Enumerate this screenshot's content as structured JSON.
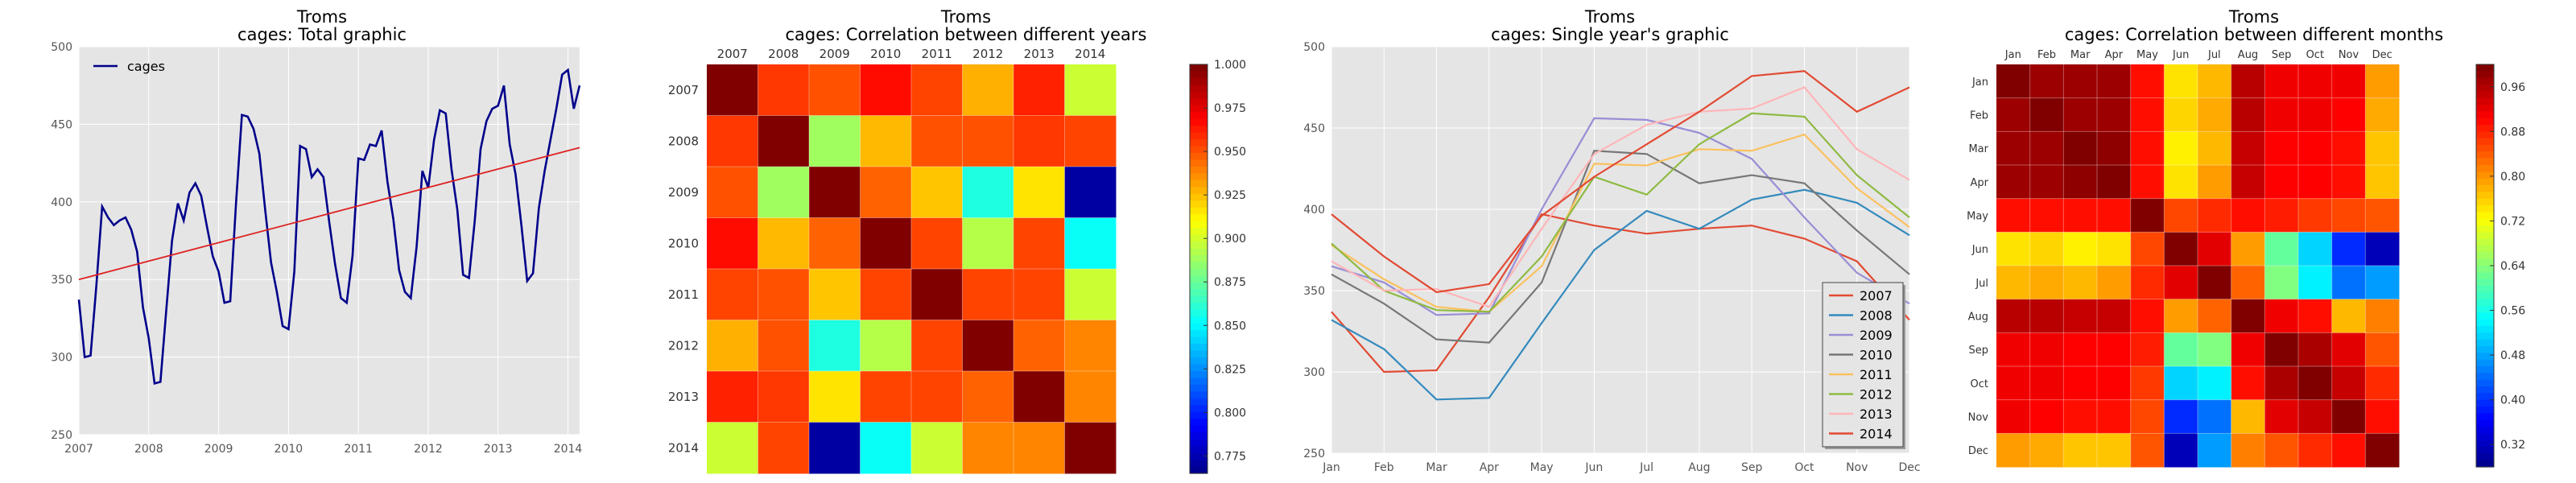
{
  "figure": {
    "region": "Troms"
  },
  "chart_data": [
    {
      "type": "line",
      "title": "Troms",
      "subtitle": "cages: Total graphic",
      "xlabel": "",
      "ylabel": "",
      "ylim": [
        250,
        500
      ],
      "xlim": [
        "2007-01",
        "2014-12"
      ],
      "yticks": [
        "250",
        "300",
        "350",
        "400",
        "450",
        "500"
      ],
      "xticks": [
        "2007",
        "2008",
        "2009",
        "2010",
        "2011",
        "2012",
        "2013",
        "2014"
      ],
      "grid": true,
      "legend_position": "top-left",
      "series": [
        {
          "name": "cages",
          "color": "#00008b",
          "values": [
            337,
            300,
            301,
            346,
            397,
            390,
            385,
            388,
            390,
            382,
            368,
            332,
            312,
            283,
            284,
            330,
            375,
            399,
            388,
            406,
            412,
            404,
            384,
            365,
            355,
            335,
            336,
            400,
            456,
            455,
            447,
            431,
            395,
            361,
            342,
            320,
            318,
            355,
            436,
            434,
            416,
            421,
            416,
            387,
            360,
            338,
            335,
            365,
            428,
            427,
            437,
            436,
            446,
            413,
            389,
            356,
            342,
            338,
            371,
            420,
            409,
            440,
            459,
            457,
            421,
            395,
            353,
            351,
            388,
            434,
            452,
            460,
            462,
            475,
            437,
            418,
            385,
            349,
            354,
            396,
            420,
            440,
            460,
            482,
            485,
            460,
            475
          ]
        },
        {
          "name": "trend",
          "color": "#dd2222",
          "legend": false,
          "values": [
            350,
            435
          ]
        }
      ]
    },
    {
      "type": "heatmap",
      "title": "Troms",
      "subtitle": "cages: Correlation between different years",
      "labels": [
        "2007",
        "2008",
        "2009",
        "2010",
        "2011",
        "2012",
        "2013",
        "2014"
      ],
      "colorbar_ticks": [
        "1.000",
        "0.975",
        "0.950",
        "0.925",
        "0.900",
        "0.875",
        "0.850",
        "0.825",
        "0.800",
        "0.775"
      ],
      "vmin": 0.765,
      "vmax": 1.0,
      "values": [
        [
          1.0,
          0.958,
          0.952,
          0.968,
          0.955,
          0.93,
          0.963,
          0.9
        ],
        [
          0.958,
          1.0,
          0.89,
          0.928,
          0.952,
          0.952,
          0.958,
          0.955
        ],
        [
          0.952,
          0.89,
          1.0,
          0.948,
          0.925,
          0.86,
          0.918,
          0.773
        ],
        [
          0.968,
          0.928,
          0.948,
          1.0,
          0.955,
          0.895,
          0.955,
          0.855
        ],
        [
          0.955,
          0.952,
          0.925,
          0.955,
          1.0,
          0.955,
          0.955,
          0.9
        ],
        [
          0.93,
          0.952,
          0.86,
          0.895,
          0.955,
          1.0,
          0.948,
          0.94
        ],
        [
          0.963,
          0.958,
          0.918,
          0.955,
          0.955,
          0.948,
          1.0,
          0.94
        ],
        [
          0.9,
          0.955,
          0.773,
          0.855,
          0.9,
          0.94,
          0.94,
          1.0
        ]
      ]
    },
    {
      "type": "line",
      "title": "Troms",
      "subtitle": "cages: Single year's graphic",
      "ylim": [
        250,
        500
      ],
      "yticks": [
        "250",
        "300",
        "350",
        "400",
        "450",
        "500"
      ],
      "categories": [
        "Jan",
        "Feb",
        "Mar",
        "Apr",
        "May",
        "Jun",
        "Jul",
        "Aug",
        "Sep",
        "Oct",
        "Nov",
        "Dec"
      ],
      "grid": true,
      "legend_position": "lower-right",
      "series": [
        {
          "name": "2007",
          "color": "#e24a33",
          "values": [
            337,
            300,
            301,
            346,
            397,
            390,
            385,
            388,
            390,
            382,
            368,
            332
          ]
        },
        {
          "name": "2008",
          "color": "#348abd",
          "values": [
            332,
            314,
            283,
            284,
            330,
            375,
            399,
            388,
            406,
            412,
            404,
            384
          ]
        },
        {
          "name": "2009",
          "color": "#988ed5",
          "values": [
            365,
            355,
            335,
            336,
            400,
            456,
            455,
            447,
            431,
            395,
            361,
            342
          ]
        },
        {
          "name": "2010",
          "color": "#777777",
          "values": [
            360,
            342,
            320,
            318,
            355,
            436,
            434,
            416,
            421,
            416,
            387,
            360
          ]
        },
        {
          "name": "2011",
          "color": "#fbc15e",
          "values": [
            378,
            357,
            340,
            337,
            365,
            428,
            427,
            437,
            436,
            446,
            413,
            389
          ]
        },
        {
          "name": "2012",
          "color": "#8eba42",
          "values": [
            379,
            350,
            338,
            337,
            371,
            420,
            409,
            440,
            459,
            457,
            421,
            395
          ]
        },
        {
          "name": "2013",
          "color": "#ffb5b8",
          "values": [
            368,
            350,
            351,
            340,
            388,
            434,
            452,
            460,
            462,
            475,
            437,
            418
          ]
        },
        {
          "name": "2014",
          "color": "#e24a33",
          "values": [
            397,
            371,
            349,
            354,
            396,
            420,
            440,
            460,
            482,
            485,
            460,
            475
          ]
        }
      ]
    },
    {
      "type": "heatmap",
      "title": "Troms",
      "subtitle": "cages: Correlation between different months",
      "labels": [
        "Jan",
        "Feb",
        "Mar",
        "Apr",
        "May",
        "Jun",
        "Jul",
        "Aug",
        "Sep",
        "Oct",
        "Nov",
        "Dec"
      ],
      "colorbar_ticks": [
        "0.96",
        "0.88",
        "0.80",
        "0.72",
        "0.64",
        "0.56",
        "0.48",
        "0.40",
        "0.32"
      ],
      "vmin": 0.28,
      "vmax": 1.0,
      "values": [
        [
          1.0,
          0.98,
          0.98,
          0.98,
          0.9,
          0.75,
          0.78,
          0.96,
          0.92,
          0.92,
          0.92,
          0.8
        ],
        [
          0.98,
          1.0,
          0.98,
          0.98,
          0.9,
          0.76,
          0.79,
          0.96,
          0.92,
          0.92,
          0.91,
          0.79
        ],
        [
          0.98,
          0.98,
          1.0,
          0.99,
          0.9,
          0.74,
          0.78,
          0.95,
          0.91,
          0.91,
          0.9,
          0.77
        ],
        [
          0.98,
          0.98,
          0.99,
          1.0,
          0.9,
          0.75,
          0.8,
          0.95,
          0.91,
          0.91,
          0.9,
          0.77
        ],
        [
          0.9,
          0.9,
          0.9,
          0.9,
          1.0,
          0.86,
          0.88,
          0.9,
          0.89,
          0.87,
          0.86,
          0.85
        ],
        [
          0.75,
          0.76,
          0.74,
          0.75,
          0.86,
          1.0,
          0.93,
          0.8,
          0.62,
          0.52,
          0.4,
          0.32
        ],
        [
          0.78,
          0.79,
          0.78,
          0.8,
          0.88,
          0.93,
          1.0,
          0.84,
          0.64,
          0.54,
          0.45,
          0.48
        ],
        [
          0.96,
          0.96,
          0.95,
          0.95,
          0.9,
          0.8,
          0.84,
          1.0,
          0.92,
          0.9,
          0.78,
          0.82
        ],
        [
          0.92,
          0.92,
          0.91,
          0.91,
          0.89,
          0.62,
          0.64,
          0.92,
          1.0,
          0.97,
          0.93,
          0.85
        ],
        [
          0.92,
          0.92,
          0.91,
          0.91,
          0.87,
          0.52,
          0.54,
          0.9,
          0.97,
          1.0,
          0.95,
          0.88
        ],
        [
          0.92,
          0.91,
          0.9,
          0.9,
          0.86,
          0.4,
          0.45,
          0.78,
          0.93,
          0.95,
          1.0,
          0.9
        ],
        [
          0.8,
          0.79,
          0.77,
          0.77,
          0.85,
          0.32,
          0.48,
          0.82,
          0.85,
          0.88,
          0.9,
          1.0
        ]
      ]
    }
  ]
}
